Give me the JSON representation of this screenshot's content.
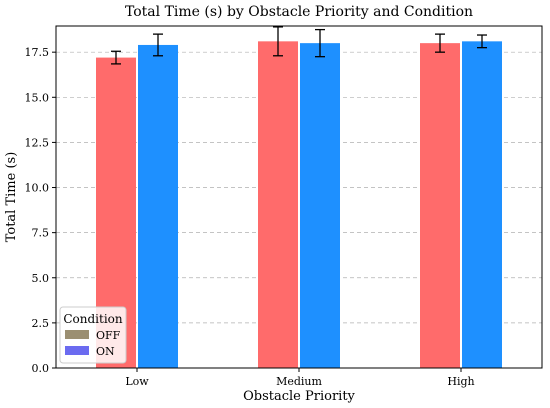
{
  "chart_data": {
    "type": "bar",
    "title": "Total Time (s) by Obstacle Priority and Condition",
    "xlabel": "Obstacle Priority",
    "ylabel": "Total Time (s)",
    "categories": [
      "Low",
      "Medium",
      "High"
    ],
    "series": [
      {
        "name": "OFF",
        "values": [
          17.2,
          18.1,
          18.0
        ],
        "error": [
          0.35,
          0.8,
          0.5
        ],
        "color": "#ff6b6b",
        "legend_color": "#9b8f72"
      },
      {
        "name": "ON",
        "values": [
          17.9,
          18.0,
          18.1
        ],
        "error": [
          0.6,
          0.75,
          0.35
        ],
        "color": "#1e90ff",
        "legend_color": "#6b6bf0"
      }
    ],
    "ylim": [
      0,
      18.95
    ],
    "yticks": [
      "0.0",
      "2.5",
      "5.0",
      "7.5",
      "10.0",
      "12.5",
      "15.0",
      "17.5"
    ],
    "grid": "horizontal dashed",
    "legend": {
      "title": "Condition",
      "placement": "bottom-left"
    }
  }
}
